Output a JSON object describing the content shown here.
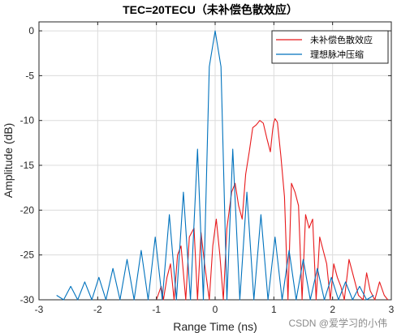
{
  "chart_data": {
    "type": "line",
    "title": "TEC=20TECU（未补偿色散效应）",
    "xlabel": "Range Time (ns)",
    "ylabel": "Amplitude (dB)",
    "xlim": [
      -3,
      3
    ],
    "ylim": [
      -30,
      1
    ],
    "xticks": [
      -3,
      -2,
      -1,
      0,
      1,
      2,
      3
    ],
    "yticks": [
      0,
      -5,
      -10,
      -15,
      -20,
      -25,
      -30
    ],
    "xtick_labels": [
      "-3",
      "-2",
      "-1",
      "0",
      "1",
      "2",
      "3"
    ],
    "ytick_labels": [
      "0",
      "-5",
      "-10",
      "-15",
      "-20",
      "-25",
      "-30"
    ],
    "grid": true,
    "legend_position": "top-right",
    "series": [
      {
        "name": "未补偿色散效应",
        "color": "#e8191b",
        "x": [
          -1.0,
          -0.92,
          -0.88,
          -0.82,
          -0.76,
          -0.7,
          -0.64,
          -0.58,
          -0.5,
          -0.44,
          -0.36,
          -0.3,
          -0.24,
          -0.18,
          -0.1,
          -0.04,
          0.02,
          0.08,
          0.14,
          0.2,
          0.28,
          0.34,
          0.4,
          0.46,
          0.52,
          0.58,
          0.64,
          0.7,
          0.76,
          0.82,
          0.88,
          0.94,
          0.98,
          1.0,
          1.02,
          1.06,
          1.12,
          1.18,
          1.24,
          1.3,
          1.36,
          1.42,
          1.48,
          1.54,
          1.6,
          1.66,
          1.72,
          1.78,
          1.84,
          1.9,
          1.96,
          2.02,
          2.08,
          2.14,
          2.2,
          2.28,
          2.36,
          2.44,
          2.52,
          2.58,
          2.64,
          2.72,
          2.8,
          2.88,
          2.94
        ],
        "y": [
          -30,
          -28.5,
          -30,
          -27.5,
          -26,
          -30,
          -25,
          -24,
          -30,
          -23,
          -22,
          -30,
          -22.5,
          -26,
          -30,
          -24,
          -21,
          -25,
          -30,
          -22,
          -18,
          -17,
          -19.5,
          -21,
          -16,
          -13.5,
          -10.8,
          -10.5,
          -10,
          -10.3,
          -12,
          -13.5,
          -11,
          -10.2,
          -9.8,
          -10.2,
          -14,
          -18.5,
          -30,
          -17,
          -18,
          -19.5,
          -30,
          -20.5,
          -22,
          -21,
          -30,
          -23,
          -24.5,
          -26,
          -30,
          -26,
          -27.5,
          -28.5,
          -30,
          -25.5,
          -27.5,
          -29.5,
          -30,
          -27,
          -29,
          -30,
          -28,
          -29.5,
          -30
        ]
      },
      {
        "name": "理想脉冲压缩",
        "color": "#0072bd",
        "x": [
          -2.7,
          -2.58,
          -2.46,
          -2.34,
          -2.22,
          -2.1,
          -1.98,
          -1.86,
          -1.74,
          -1.62,
          -1.5,
          -1.38,
          -1.26,
          -1.14,
          -1.02,
          -0.9,
          -0.78,
          -0.66,
          -0.54,
          -0.42,
          -0.3,
          -0.2,
          -0.1,
          0,
          0.1,
          0.2,
          0.3,
          0.42,
          0.54,
          0.66,
          0.78,
          0.9,
          1.02,
          1.14,
          1.26,
          1.38,
          1.5,
          1.62,
          1.74,
          1.86,
          1.98,
          2.1,
          2.22,
          2.34,
          2.46,
          2.58,
          2.7
        ],
        "y": [
          -29.5,
          -30,
          -28.5,
          -30,
          -28,
          -30,
          -27.5,
          -30,
          -26.5,
          -30,
          -25.5,
          -30,
          -24.5,
          -30,
          -23,
          -30,
          -20.5,
          -30,
          -18,
          -30,
          -13.2,
          -30,
          -4,
          0,
          -4,
          -30,
          -13.2,
          -30,
          -18,
          -30,
          -20.5,
          -30,
          -23,
          -30,
          -24.5,
          -30,
          -25.5,
          -30,
          -26.5,
          -30,
          -27.5,
          -30,
          -28,
          -30,
          -28.5,
          -30,
          -29.5
        ]
      }
    ]
  },
  "watermark": "CSDN @爱学习的小伟"
}
